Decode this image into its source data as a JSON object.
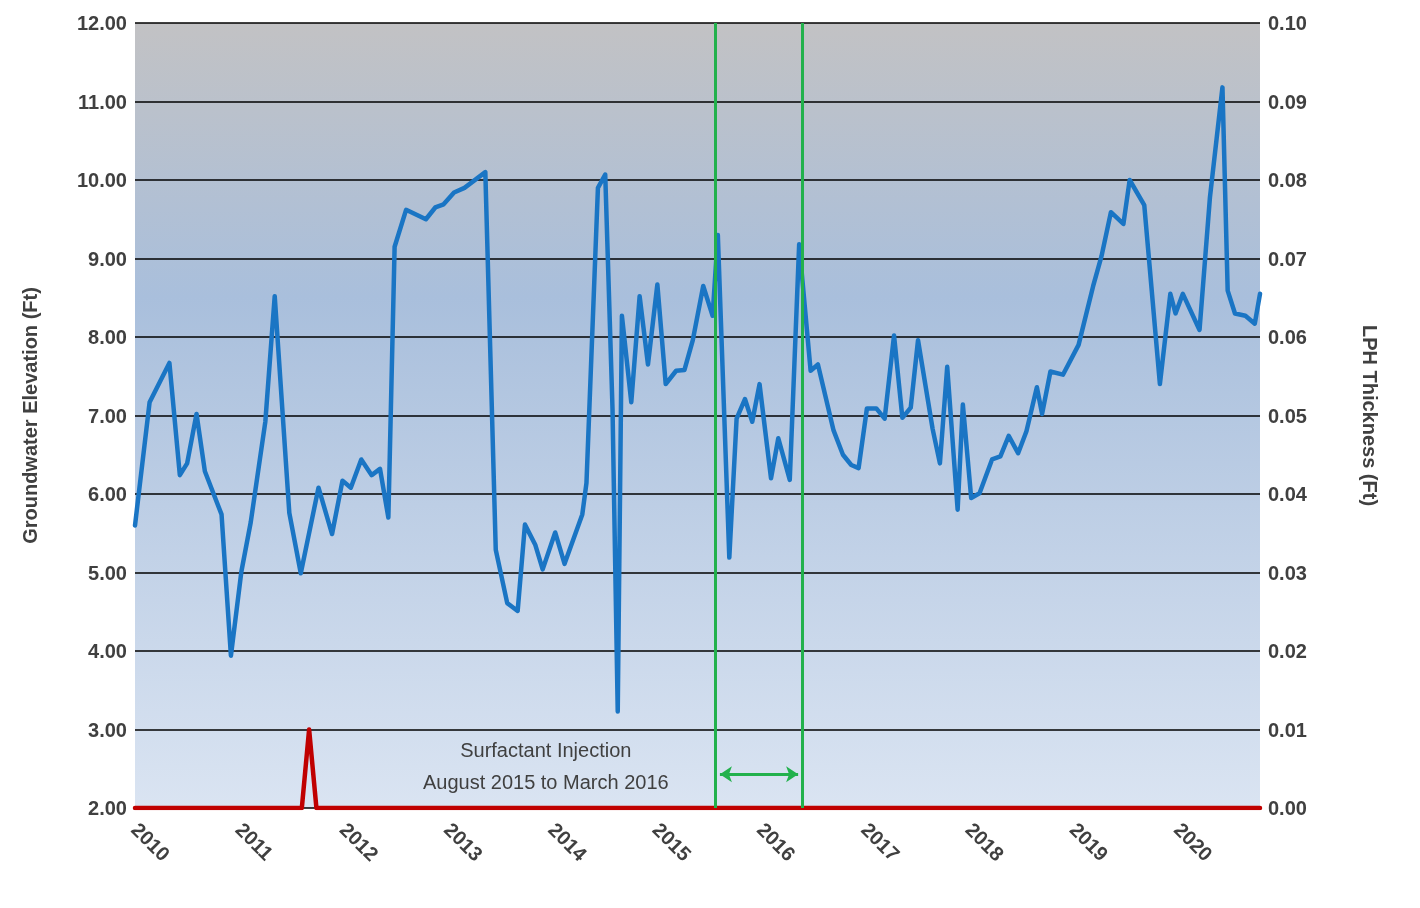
{
  "chart_data": {
    "type": "line",
    "ylabel": "Groundwater Elevation (Ft)",
    "y2label": "LPH Thickness (Ft)",
    "xlim": [
      2010,
      2020.79
    ],
    "xticks": [
      2010,
      2011,
      2012,
      2013,
      2014,
      2015,
      2016,
      2017,
      2018,
      2019,
      2020
    ],
    "ylim": [
      2,
      12
    ],
    "yticks": [
      {
        "value": 2,
        "label": "2.00"
      },
      {
        "value": 3,
        "label": "3.00"
      },
      {
        "value": 4,
        "label": "4.00"
      },
      {
        "value": 5,
        "label": "5.00"
      },
      {
        "value": 6,
        "label": "6.00"
      },
      {
        "value": 7,
        "label": "7.00"
      },
      {
        "value": 8,
        "label": "8.00"
      },
      {
        "value": 9,
        "label": "9.00"
      },
      {
        "value": 10,
        "label": "10.00"
      },
      {
        "value": 11,
        "label": "11.00"
      },
      {
        "value": 12,
        "label": "12.00"
      }
    ],
    "y2lim": [
      0,
      0.1
    ],
    "y2ticks": [
      {
        "value": 0,
        "label": "0.00"
      },
      {
        "value": 0.01,
        "label": "0.01"
      },
      {
        "value": 0.02,
        "label": "0.02"
      },
      {
        "value": 0.03,
        "label": "0.03"
      },
      {
        "value": 0.04,
        "label": "0.04"
      },
      {
        "value": 0.05,
        "label": "0.05"
      },
      {
        "value": 0.06,
        "label": "0.06"
      },
      {
        "value": 0.07,
        "label": "0.07"
      },
      {
        "value": 0.08,
        "label": "0.08"
      },
      {
        "value": 0.09,
        "label": "0.09"
      },
      {
        "value": 0.1,
        "label": "0.10"
      }
    ],
    "grid": "y",
    "marker": "none",
    "line_style": "solid",
    "series": [
      {
        "color": "#1a75c4",
        "x": [
          2010.0,
          2010.14,
          2010.33,
          2010.43,
          2010.5,
          2010.59,
          2010.67,
          2010.83,
          2010.92,
          2011.02,
          2011.11,
          2011.25,
          2011.34,
          2011.48,
          2011.59,
          2011.76,
          2011.89,
          2011.99,
          2012.07,
          2012.17,
          2012.27,
          2012.35,
          2012.43,
          2012.49,
          2012.6,
          2012.79,
          2012.88,
          2012.96,
          2013.06,
          2013.16,
          2013.36,
          2013.46,
          2013.57,
          2013.67,
          2013.74,
          2013.84,
          2013.91,
          2014.03,
          2014.12,
          2014.29,
          2014.33,
          2014.44,
          2014.51,
          2014.58,
          2014.63,
          2014.67,
          2014.76,
          2014.84,
          2014.92,
          2015.01,
          2015.09,
          2015.19,
          2015.27,
          2015.35,
          2015.45,
          2015.54,
          2015.59,
          2015.7,
          2015.77,
          2015.85,
          2015.92,
          2015.99,
          2016.1,
          2016.17,
          2016.28,
          2016.37,
          2016.48,
          2016.55,
          2016.7,
          2016.79,
          2016.87,
          2016.94,
          2017.02,
          2017.11,
          2017.19,
          2017.28,
          2017.36,
          2017.44,
          2017.51,
          2017.65,
          2017.72,
          2017.79,
          2017.89,
          2017.94,
          2018.02,
          2018.1,
          2018.22,
          2018.3,
          2018.38,
          2018.47,
          2018.55,
          2018.65,
          2018.7,
          2018.78,
          2018.9,
          2019.05,
          2019.19,
          2019.27,
          2019.36,
          2019.48,
          2019.54,
          2019.68,
          2019.83,
          2019.93,
          2019.98,
          2020.05,
          2020.21,
          2020.31,
          2020.43,
          2020.48,
          2020.55,
          2020.65,
          2020.74,
          2020.79
        ],
        "values": [
          5.6,
          7.17,
          7.67,
          6.24,
          6.39,
          7.02,
          6.29,
          5.74,
          3.94,
          5.01,
          5.64,
          6.92,
          8.52,
          5.76,
          4.99,
          6.08,
          5.49,
          6.17,
          6.08,
          6.44,
          6.24,
          6.32,
          5.7,
          9.15,
          9.62,
          9.5,
          9.65,
          9.69,
          9.84,
          9.9,
          10.1,
          5.29,
          4.61,
          4.51,
          5.61,
          5.35,
          5.04,
          5.51,
          5.11,
          5.74,
          6.14,
          9.9,
          10.07,
          7.08,
          3.23,
          8.27,
          7.17,
          8.52,
          7.65,
          8.67,
          7.4,
          7.57,
          7.58,
          7.96,
          8.65,
          8.27,
          9.3,
          5.19,
          6.96,
          7.21,
          6.92,
          7.4,
          6.2,
          6.71,
          6.18,
          9.18,
          7.57,
          7.65,
          6.81,
          6.5,
          6.37,
          6.33,
          7.09,
          7.09,
          6.96,
          8.02,
          6.97,
          7.1,
          7.96,
          6.83,
          6.39,
          7.62,
          5.8,
          7.14,
          5.95,
          6.01,
          6.44,
          6.48,
          6.74,
          6.52,
          6.8,
          7.36,
          7.02,
          7.56,
          7.52,
          7.9,
          8.65,
          9.03,
          9.59,
          9.44,
          10.0,
          9.68,
          7.4,
          8.55,
          8.3,
          8.55,
          8.09,
          9.78,
          11.18,
          8.59,
          8.3,
          8.27,
          8.17,
          8.55
        ]
      },
      {
        "color": "#c00000",
        "axis": "y2",
        "x": [
          2010,
          2011.6,
          2011.67,
          2011.74,
          2020.79
        ],
        "values": [
          0,
          0,
          0.01,
          0,
          0
        ]
      }
    ],
    "ref_lines": [
      {
        "axis": "x",
        "value": 2015.57,
        "color": "#22b14c"
      },
      {
        "axis": "x",
        "value": 2016.4,
        "color": "#22b14c"
      }
    ],
    "annotations": [
      "Surfactant Injection\nAugust 2015 to March 2016"
    ]
  }
}
